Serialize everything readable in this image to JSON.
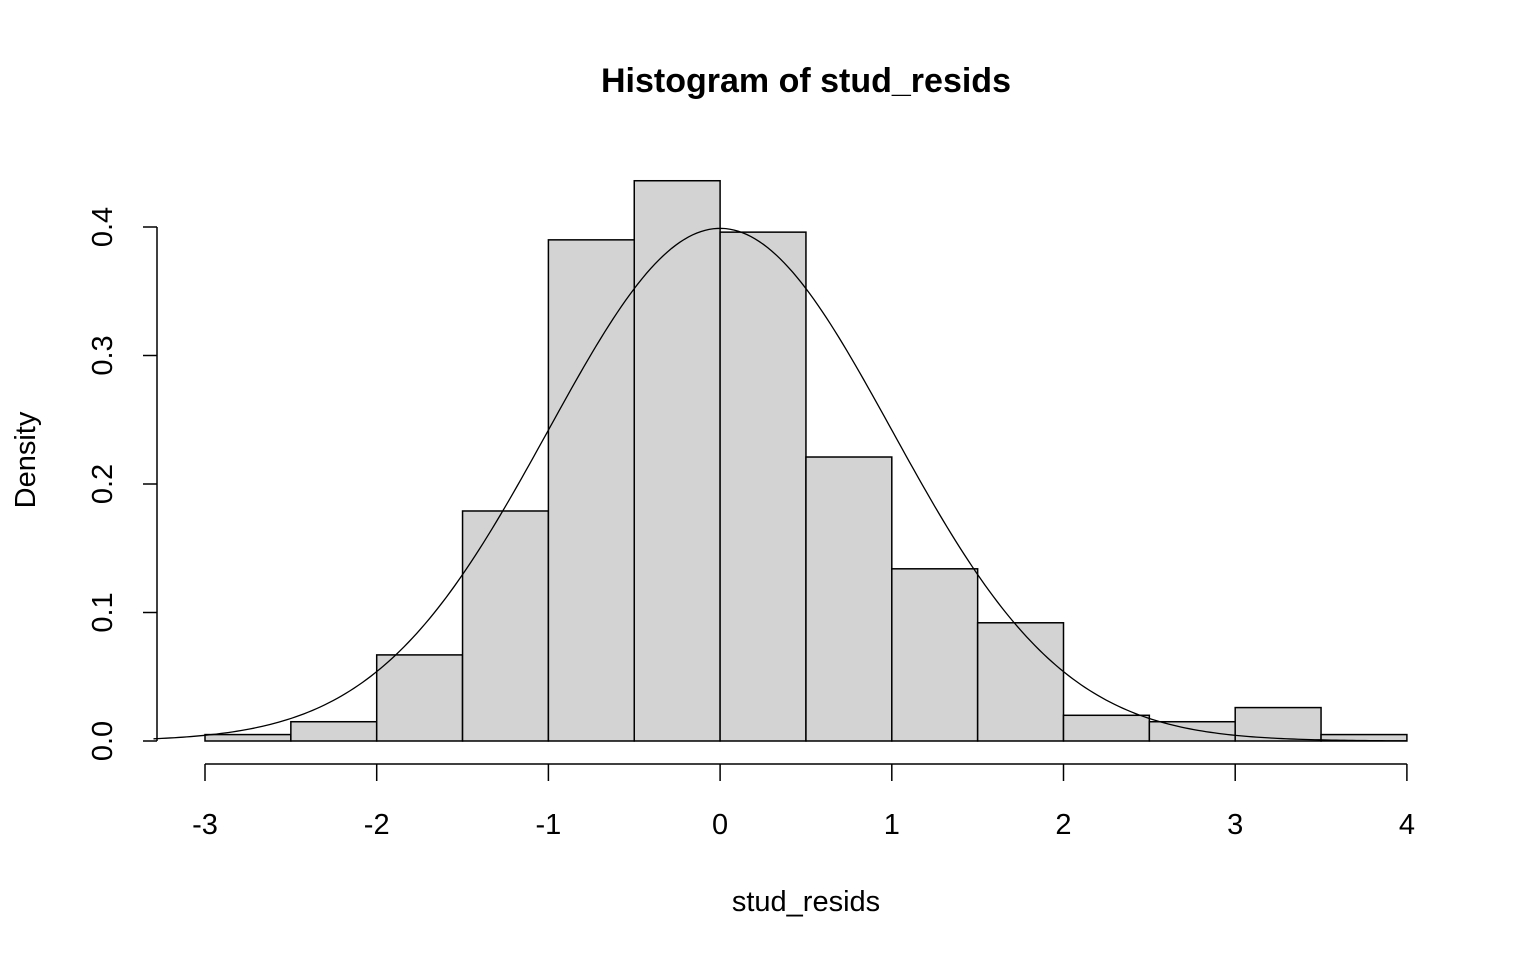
{
  "chart_data": {
    "type": "bar",
    "subtype": "histogram-with-density-curve",
    "title": "Histogram of stud_resids",
    "xlabel": "stud_resids",
    "ylabel": "Density",
    "xlim": [
      -3,
      4
    ],
    "ylim": [
      0,
      0.4
    ],
    "x_ticks": [
      -3,
      -2,
      -1,
      0,
      1,
      2,
      3,
      4
    ],
    "y_ticks": [
      0.0,
      0.1,
      0.2,
      0.3,
      0.4
    ],
    "x_tick_labels": [
      "-3",
      "-2",
      "-1",
      "0",
      "1",
      "2",
      "3",
      "4"
    ],
    "y_tick_labels": [
      "0.0",
      "0.1",
      "0.2",
      "0.3",
      "0.4"
    ],
    "bin_edges": [
      -3,
      -2.5,
      -2,
      -1.5,
      -1,
      -0.5,
      0,
      0.5,
      1,
      1.5,
      2,
      2.5,
      3,
      3.5,
      4
    ],
    "values": [
      0.005,
      0.015,
      0.067,
      0.179,
      0.39,
      0.436,
      0.396,
      0.221,
      0.134,
      0.092,
      0.02,
      0.015,
      0.026,
      0.005
    ],
    "overlay": {
      "type": "line",
      "distribution": "standard-normal-density",
      "mean": 0,
      "sd": 1,
      "x_range": [
        -3.3,
        4
      ]
    },
    "colors": {
      "bar_fill": "#d3d3d3",
      "bar_stroke": "#000000",
      "line": "#000000"
    },
    "grid": false,
    "legend": "none"
  }
}
